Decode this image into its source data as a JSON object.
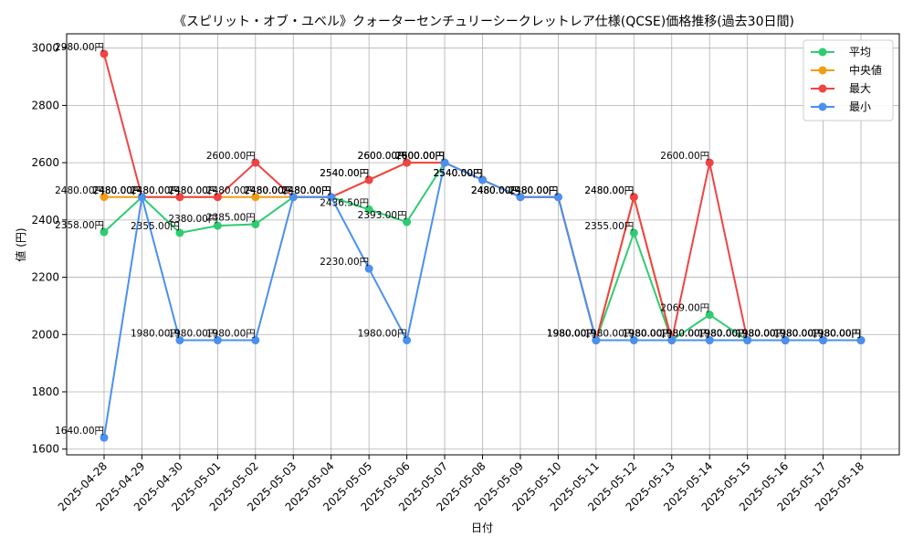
{
  "chart_data": {
    "type": "line",
    "title": "《スピリット・オブ・ユベル》クォーターセンチュリーシークレットレア仕様(QCSE)価格推移(過去30日間)",
    "xlabel": "日付",
    "ylabel": "値 (円)",
    "ylim": [
      1580,
      3050
    ],
    "yticks": [
      1600,
      1800,
      2000,
      2200,
      2400,
      2600,
      2800,
      3000
    ],
    "grid": true,
    "legend_position": "top-right",
    "value_suffix": "円",
    "categories": [
      "2025-04-28",
      "2025-04-29",
      "2025-04-30",
      "2025-05-01",
      "2025-05-02",
      "2025-05-03",
      "2025-05-04",
      "2025-05-05",
      "2025-05-06",
      "2025-05-07",
      "2025-05-08",
      "2025-05-09",
      "2025-05-10",
      "2025-05-11",
      "2025-05-12",
      "2025-05-13",
      "2025-05-14",
      "2025-05-15",
      "2025-05-16",
      "2025-05-17",
      "2025-05-18"
    ],
    "series": [
      {
        "name": "平均",
        "color": "#2ecc71",
        "values": [
          2358,
          2480,
          2355,
          2380,
          2385,
          2480,
          2480,
          2436.5,
          2393,
          2600,
          2540,
          2480,
          2480,
          1980,
          2355,
          1980,
          2069,
          1980,
          1980,
          1980,
          1980
        ]
      },
      {
        "name": "中央値",
        "color": "#f39c12",
        "values": [
          2480,
          2480,
          2480,
          2480,
          2480,
          2480,
          2480,
          2540,
          2600,
          2600,
          2540,
          2480,
          2480,
          1980,
          2480,
          1980,
          1980,
          1980,
          1980,
          1980,
          1980
        ]
      },
      {
        "name": "最大",
        "color": "#ef4444",
        "values": [
          2980,
          2480,
          2480,
          2480,
          2600,
          2480,
          2480,
          2540,
          2600,
          2600,
          2540,
          2480,
          2480,
          1980,
          2480,
          1980,
          2600,
          1980,
          1980,
          1980,
          1980
        ]
      },
      {
        "name": "最小",
        "color": "#4a90f0",
        "values": [
          1640,
          2480,
          1980,
          1980,
          1980,
          2480,
          2480,
          2230,
          1980,
          2600,
          2540,
          2480,
          2480,
          1980,
          1980,
          1980,
          1980,
          1980,
          1980,
          1980,
          1980
        ]
      }
    ]
  }
}
